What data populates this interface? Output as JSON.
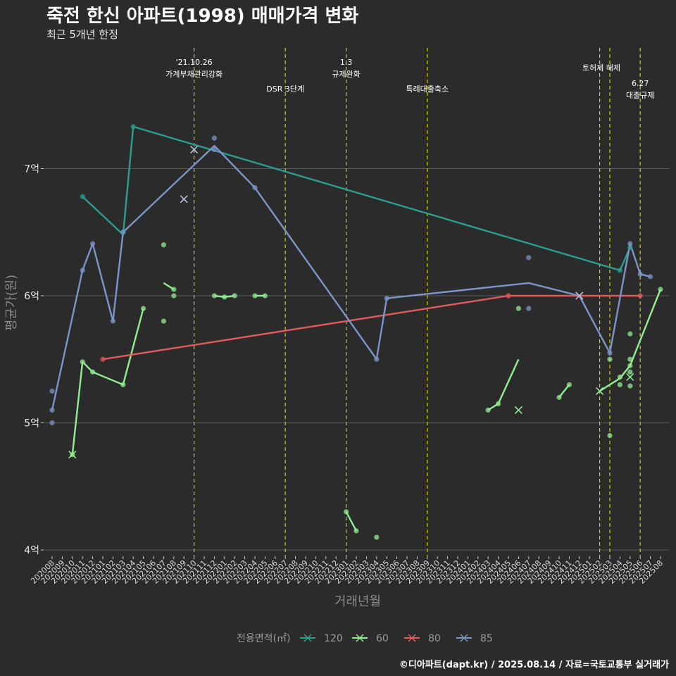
{
  "chart_data": {
    "type": "line",
    "title": "죽전 한신 아파트(1998) 매매가격 변화",
    "subtitle": "최근 5개년 한정",
    "xlabel": "거래년월",
    "ylabel": "평균가(원)",
    "caption": "©디아파트(dapt.kr) / 2025.08.14 / 자료=국토교통부 실거래가",
    "ylim": [
      3.95,
      7.95
    ],
    "yticks": [
      {
        "v": 4,
        "label": "4억"
      },
      {
        "v": 5,
        "label": "5억"
      },
      {
        "v": 6,
        "label": "6억"
      },
      {
        "v": 7,
        "label": "7억"
      }
    ],
    "x_categories": [
      "202008",
      "202009",
      "202010",
      "202011",
      "202012",
      "202101",
      "202102",
      "202103",
      "202104",
      "202105",
      "202106",
      "202107",
      "202108",
      "202109",
      "202110",
      "202111",
      "202112",
      "202201",
      "202202",
      "202203",
      "202204",
      "202205",
      "202206",
      "202207",
      "202208",
      "202209",
      "202210",
      "202211",
      "202212",
      "202301",
      "202302",
      "202303",
      "202304",
      "202305",
      "202306",
      "202307",
      "202308",
      "202309",
      "202310",
      "202311",
      "202312",
      "202401",
      "202402",
      "202403",
      "202404",
      "202405",
      "202406",
      "202407",
      "202408",
      "202409",
      "202410",
      "202411",
      "202412",
      "202501",
      "202502",
      "202503",
      "202504",
      "202505",
      "202506",
      "202507",
      "202508"
    ],
    "legend": {
      "title": "전용면적(㎡)",
      "items": [
        {
          "name": "120",
          "color": "#2a9d8f"
        },
        {
          "name": "60",
          "color": "#90ee90"
        },
        {
          "name": "80",
          "color": "#e05a5a"
        },
        {
          "name": "85",
          "color": "#7b95c9"
        }
      ]
    },
    "annotations": [
      {
        "x": "202110",
        "lines": [
          "'21.10.26",
          "가계부채관리강화"
        ],
        "level": "top"
      },
      {
        "x": "202207",
        "lines": [
          "DSR 3단계"
        ],
        "level": "mid"
      },
      {
        "x": "202301",
        "lines": [
          "1.3",
          "규제완화"
        ],
        "level": "top"
      },
      {
        "x": "202309",
        "lines": [
          "특례대출축소"
        ],
        "level": "mid"
      },
      {
        "x": "202502",
        "lines": [],
        "level": "top"
      },
      {
        "x": "202503",
        "lines": [
          "토허제 해제"
        ],
        "level": "top2"
      },
      {
        "x": "202506",
        "lines": [
          "6.27",
          "대출규제"
        ],
        "level": "mid2"
      }
    ],
    "series": [
      {
        "name": "120",
        "color": "#2a9d8f",
        "line": [
          [
            "202011",
            6.78
          ],
          [
            "202103",
            6.48
          ],
          [
            "202104",
            7.33
          ],
          [
            "202504",
            6.2
          ],
          [
            "202505",
            6.38
          ]
        ],
        "points": [
          [
            "202011",
            6.78
          ],
          [
            "202103",
            6.5
          ],
          [
            "202104",
            7.33
          ],
          [
            "202504",
            6.2
          ],
          [
            "202505",
            6.38
          ]
        ],
        "crosses": []
      },
      {
        "name": "60",
        "color": "#90ee90",
        "line_segments": [
          [
            [
              "202010",
              4.75
            ],
            [
              "202011",
              5.48
            ],
            [
              "202012",
              5.4
            ],
            [
              "202103",
              5.3
            ],
            [
              "202105",
              5.9
            ]
          ],
          [
            [
              "202107",
              6.1
            ],
            [
              "202108",
              6.05
            ]
          ],
          [
            [
              "202112",
              6.0
            ],
            [
              "202201",
              5.99
            ],
            [
              "202202",
              6.0
            ]
          ],
          [
            [
              "202204",
              6.0
            ],
            [
              "202205",
              6.0
            ]
          ],
          [
            [
              "202301",
              4.3
            ],
            [
              "202302",
              4.15
            ]
          ],
          [
            [
              "202403",
              5.1
            ],
            [
              "202404",
              5.15
            ],
            [
              "202406",
              5.5
            ]
          ],
          [
            [
              "202410",
              5.2
            ],
            [
              "202411",
              5.3
            ]
          ],
          [
            [
              "202502",
              5.25
            ],
            [
              "202503",
              5.3
            ],
            [
              "202504",
              5.35
            ],
            [
              "202505",
              5.45
            ],
            [
              "202508",
              6.05
            ]
          ]
        ],
        "points": [
          [
            "202010",
            4.75
          ],
          [
            "202011",
            5.48
          ],
          [
            "202012",
            5.4
          ],
          [
            "202103",
            5.3
          ],
          [
            "202105",
            5.9
          ],
          [
            "202107",
            6.4
          ],
          [
            "202107",
            5.8
          ],
          [
            "202108",
            6.05
          ],
          [
            "202108",
            6.0
          ],
          [
            "202112",
            6.0
          ],
          [
            "202201",
            5.99
          ],
          [
            "202202",
            6.0
          ],
          [
            "202204",
            6.0
          ],
          [
            "202205",
            6.0
          ],
          [
            "202301",
            4.3
          ],
          [
            "202302",
            4.15
          ],
          [
            "202304",
            4.1
          ],
          [
            "202403",
            5.1
          ],
          [
            "202404",
            5.15
          ],
          [
            "202406",
            5.9
          ],
          [
            "202410",
            5.2
          ],
          [
            "202411",
            5.3
          ],
          [
            "202503",
            5.5
          ],
          [
            "202503",
            4.9
          ],
          [
            "202504",
            5.3
          ],
          [
            "202504",
            5.36
          ],
          [
            "202505",
            5.7
          ],
          [
            "202505",
            5.5
          ],
          [
            "202505",
            5.45
          ],
          [
            "202505",
            5.4
          ],
          [
            "202505",
            5.29
          ],
          [
            "202508",
            6.05
          ]
        ],
        "crosses": [
          [
            "202010",
            4.75
          ],
          [
            "202406",
            5.1
          ],
          [
            "202502",
            5.25
          ],
          [
            "202505",
            5.36
          ]
        ]
      },
      {
        "name": "80",
        "color": "#e05a5a",
        "line": [
          [
            "202101",
            5.5
          ],
          [
            "202405",
            6.0
          ],
          [
            "202412",
            6.0
          ],
          [
            "202506",
            6.0
          ]
        ],
        "points": [
          [
            "202101",
            5.5
          ],
          [
            "202405",
            6.0
          ],
          [
            "202506",
            6.0
          ]
        ],
        "crosses": [
          [
            "202412",
            6.0
          ]
        ]
      },
      {
        "name": "85",
        "color": "#7b95c9",
        "line": [
          [
            "202008",
            5.1
          ],
          [
            "202011",
            6.2
          ],
          [
            "202012",
            6.41
          ],
          [
            "202102",
            5.8
          ],
          [
            "202103",
            6.5
          ],
          [
            "202112",
            7.18
          ],
          [
            "202204",
            6.85
          ],
          [
            "202304",
            5.5
          ],
          [
            "202305",
            5.98
          ],
          [
            "202407",
            6.1
          ],
          [
            "202412",
            6.0
          ],
          [
            "202503",
            5.55
          ],
          [
            "202505",
            6.41
          ],
          [
            "202506",
            6.17
          ],
          [
            "202507",
            6.15
          ]
        ],
        "points": [
          [
            "202008",
            5.25
          ],
          [
            "202008",
            5.1
          ],
          [
            "202008",
            5.0
          ],
          [
            "202011",
            6.2
          ],
          [
            "202012",
            6.41
          ],
          [
            "202102",
            5.8
          ],
          [
            "202103",
            6.5
          ],
          [
            "202112",
            7.24
          ],
          [
            "202112",
            7.15
          ],
          [
            "202204",
            6.85
          ],
          [
            "202304",
            5.5
          ],
          [
            "202305",
            5.98
          ],
          [
            "202407",
            6.3
          ],
          [
            "202407",
            5.9
          ],
          [
            "202503",
            5.55
          ],
          [
            "202505",
            6.41
          ],
          [
            "202506",
            6.17
          ],
          [
            "202507",
            6.15
          ]
        ],
        "crosses": [
          [
            "202109",
            6.76
          ],
          [
            "202110",
            7.15
          ],
          [
            "202412",
            6.0
          ]
        ]
      }
    ]
  }
}
